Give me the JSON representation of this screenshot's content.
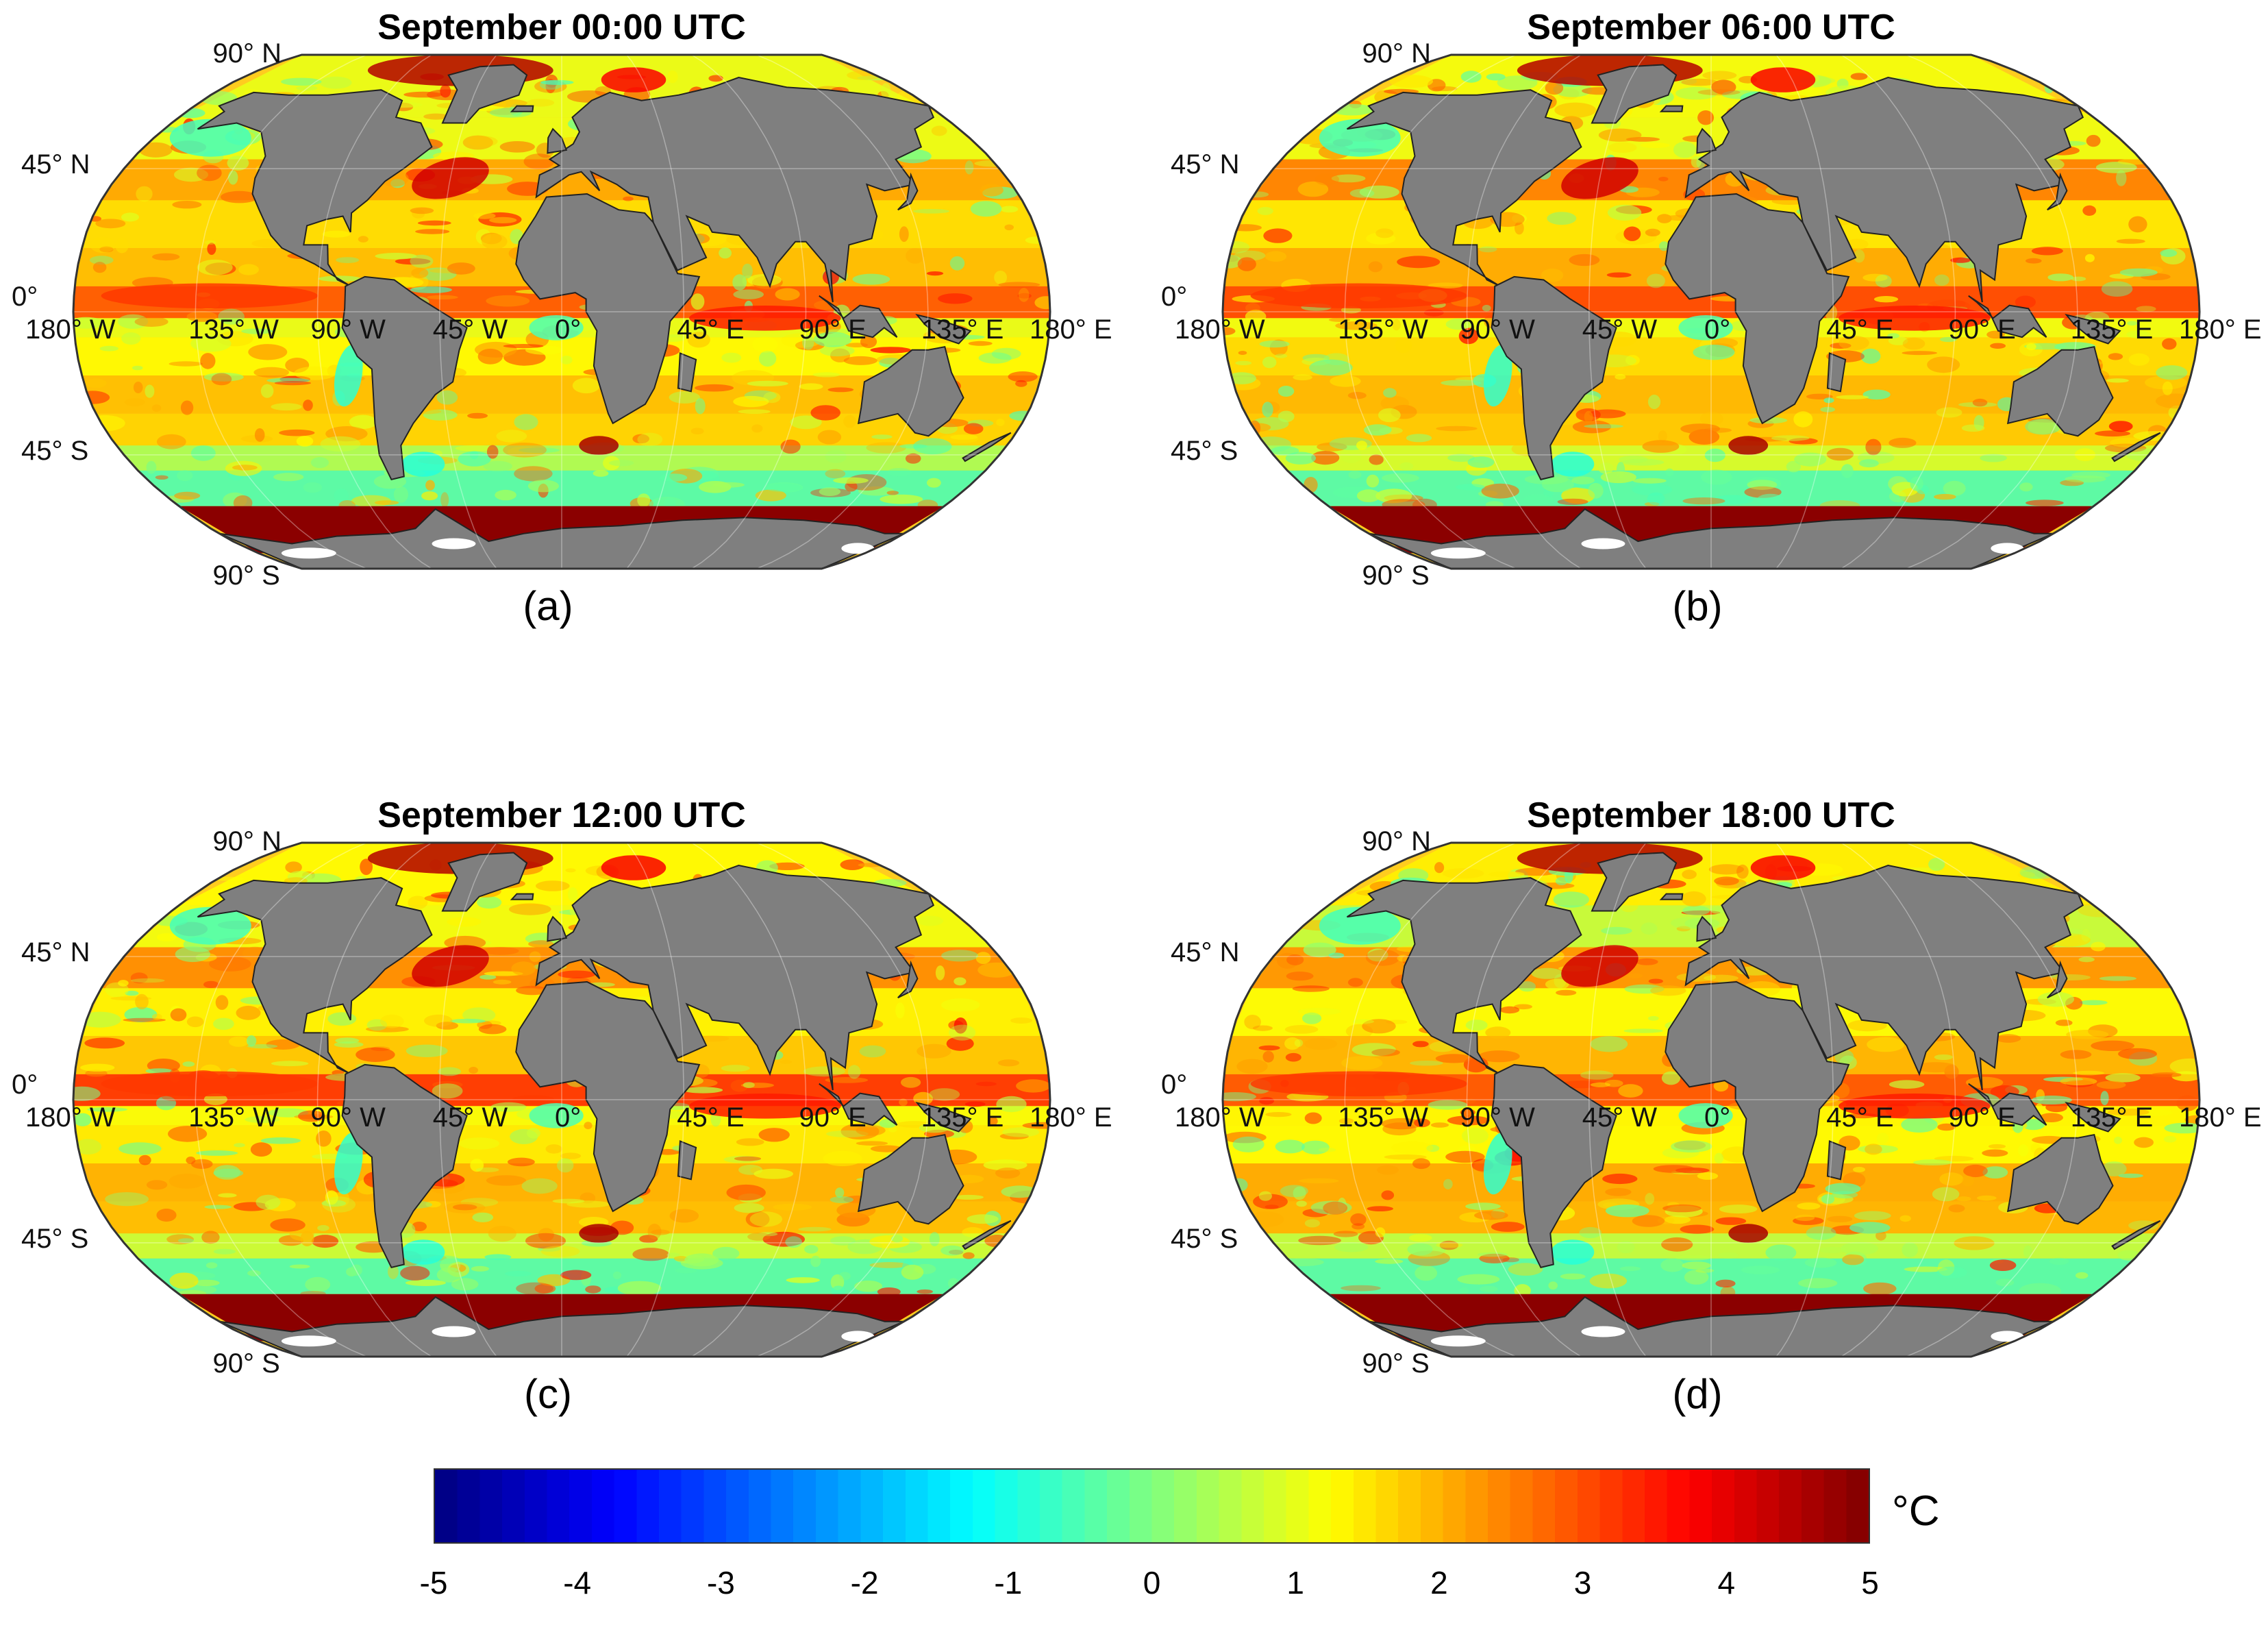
{
  "panels": [
    {
      "title": "September 00:00 UTC",
      "label": "(a)"
    },
    {
      "title": "September 06:00 UTC",
      "label": "(b)"
    },
    {
      "title": "September 12:00 UTC",
      "label": "(c)"
    },
    {
      "title": "September 18:00 UTC",
      "label": "(d)"
    }
  ],
  "graticule": {
    "lat_labels": [
      "90° N",
      "45° N",
      "0°",
      "45° S",
      "90° S"
    ],
    "lon_labels": [
      "180° W",
      "135° W",
      "90° W",
      "45° W",
      "0°",
      "45° E",
      "90° E",
      "135° E",
      "180° E"
    ]
  },
  "colorbar": {
    "unit": "°C",
    "ticks": [
      "-5",
      "-4",
      "-3",
      "-2",
      "-1",
      "0",
      "1",
      "2",
      "3",
      "4",
      "5"
    ],
    "range": [
      -5,
      5
    ],
    "colormap": "jet"
  },
  "colors": {
    "land": "#7f7f7f",
    "antarctic_band": "#8b0000",
    "ocean_base": "#ffcc1f"
  }
}
